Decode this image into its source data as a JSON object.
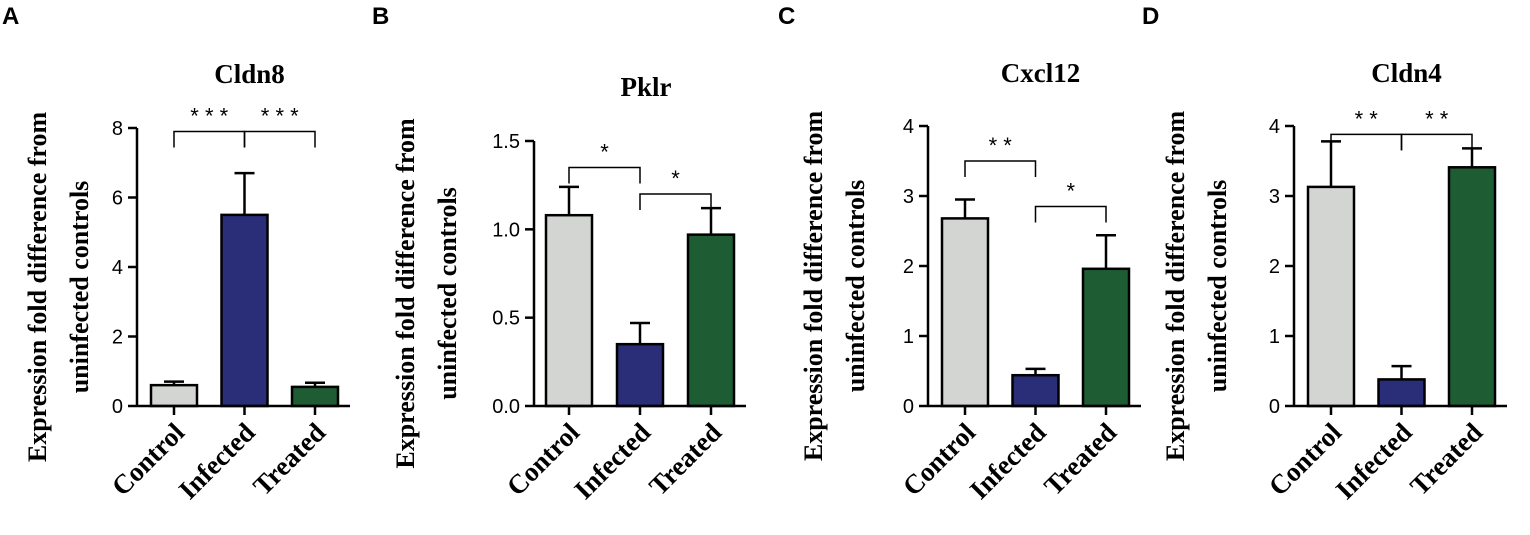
{
  "colors": {
    "control": "#d3d5d3",
    "infected": "#2a2d78",
    "treated": "#1e5c34",
    "axis": "#000000"
  },
  "chart_data": [
    {
      "panel": "A",
      "type": "bar",
      "title": "Cldn8",
      "ylabel_lines": [
        "Expression fold difference from",
        "uninfected controls"
      ],
      "xlabel": "",
      "categories": [
        "Control",
        "Infected",
        "Treated"
      ],
      "values": [
        0.6,
        5.5,
        0.55
      ],
      "errors": [
        0.1,
        1.2,
        0.12
      ],
      "ylim": [
        0,
        8
      ],
      "yticks": [
        0,
        2,
        4,
        6,
        8
      ],
      "ytick_labels": [
        "0",
        "2",
        "4",
        "6",
        "8"
      ],
      "significance": [
        {
          "from": 0,
          "to": 1,
          "y": 7.9,
          "label": "* * *"
        },
        {
          "from": 1,
          "to": 2,
          "y": 7.9,
          "label": "* * *"
        }
      ]
    },
    {
      "panel": "B",
      "type": "bar",
      "title": "Pklr",
      "ylabel_lines": [
        "Expression fold difference from",
        "uninfected controls"
      ],
      "xlabel": "",
      "categories": [
        "Control",
        "Infected",
        "Treated"
      ],
      "values": [
        1.08,
        0.35,
        0.97
      ],
      "errors": [
        0.16,
        0.12,
        0.15
      ],
      "ylim": [
        0,
        1.5
      ],
      "yticks": [
        0,
        0.5,
        1.0,
        1.5
      ],
      "ytick_labels": [
        "0.0",
        "0.5",
        "1.0",
        "1.5"
      ],
      "significance": [
        {
          "from": 0,
          "to": 1,
          "y": 1.35,
          "label": "*"
        },
        {
          "from": 1,
          "to": 2,
          "y": 1.2,
          "label": "*"
        }
      ]
    },
    {
      "panel": "C",
      "type": "bar",
      "title": "Cxcl12",
      "ylabel_lines": [
        "Expression fold difference from",
        "uninfected controls"
      ],
      "xlabel": "",
      "categories": [
        "Control",
        "Infected",
        "Treated"
      ],
      "values": [
        2.68,
        0.44,
        1.96
      ],
      "errors": [
        0.27,
        0.09,
        0.48
      ],
      "ylim": [
        0,
        4
      ],
      "yticks": [
        0,
        1,
        2,
        3,
        4
      ],
      "ytick_labels": [
        "0",
        "1",
        "2",
        "3",
        "4"
      ],
      "significance": [
        {
          "from": 0,
          "to": 1,
          "y": 3.5,
          "label": "* *"
        },
        {
          "from": 1,
          "to": 2,
          "y": 2.85,
          "label": "*"
        }
      ]
    },
    {
      "panel": "D",
      "type": "bar",
      "title": "Cldn4",
      "ylabel_lines": [
        "Expression fold difference from",
        "uninfected controls"
      ],
      "xlabel": "",
      "categories": [
        "Control",
        "Infected",
        "Treated"
      ],
      "values": [
        3.13,
        0.38,
        3.41
      ],
      "errors": [
        0.65,
        0.19,
        0.27
      ],
      "ylim": [
        0,
        4
      ],
      "yticks": [
        0,
        1,
        2,
        3,
        4
      ],
      "ytick_labels": [
        "0",
        "1",
        "2",
        "3",
        "4"
      ],
      "significance": [
        {
          "from": 0,
          "to": 1,
          "y": 3.88,
          "label": "* *"
        },
        {
          "from": 1,
          "to": 2,
          "y": 3.88,
          "label": "* *"
        }
      ]
    }
  ]
}
